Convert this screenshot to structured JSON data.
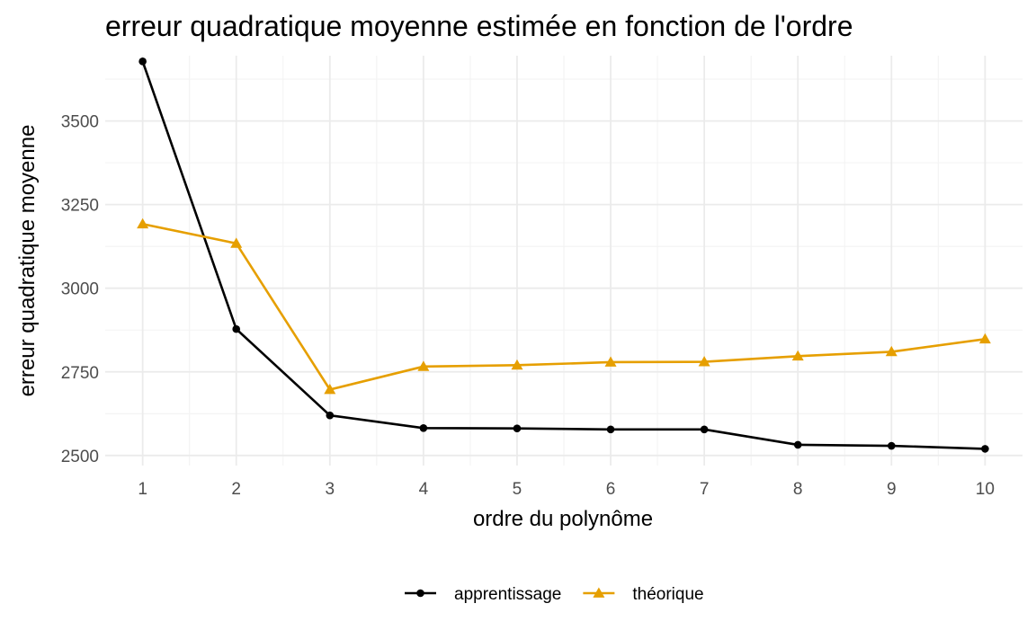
{
  "chart_data": {
    "type": "line",
    "title": "erreur quadratique moyenne estimée en fonction de l'ordre",
    "xlabel": "ordre du polynôme",
    "ylabel": "erreur quadratique moyenne",
    "x": [
      1,
      2,
      3,
      4,
      5,
      6,
      7,
      8,
      9,
      10
    ],
    "x_ticks": [
      "1",
      "2",
      "3",
      "4",
      "5",
      "6",
      "7",
      "8",
      "9",
      "10"
    ],
    "y_ticks": [
      "2500",
      "2750",
      "3000",
      "3250",
      "3500"
    ],
    "xlim": [
      0.6,
      10.4
    ],
    "ylim": [
      2470,
      3695
    ],
    "grid": true,
    "legend_position": "bottom",
    "series": [
      {
        "name": "apprentissage",
        "color": "#000000",
        "marker": "circle",
        "values": [
          3678,
          2878,
          2620,
          2582,
          2581,
          2578,
          2578,
          2532,
          2529,
          2520
        ]
      },
      {
        "name": "théorique",
        "color": "#E69F00",
        "marker": "triangle",
        "values": [
          3192,
          3134,
          2697,
          2766,
          2770,
          2779,
          2780,
          2797,
          2810,
          2848
        ]
      }
    ]
  }
}
